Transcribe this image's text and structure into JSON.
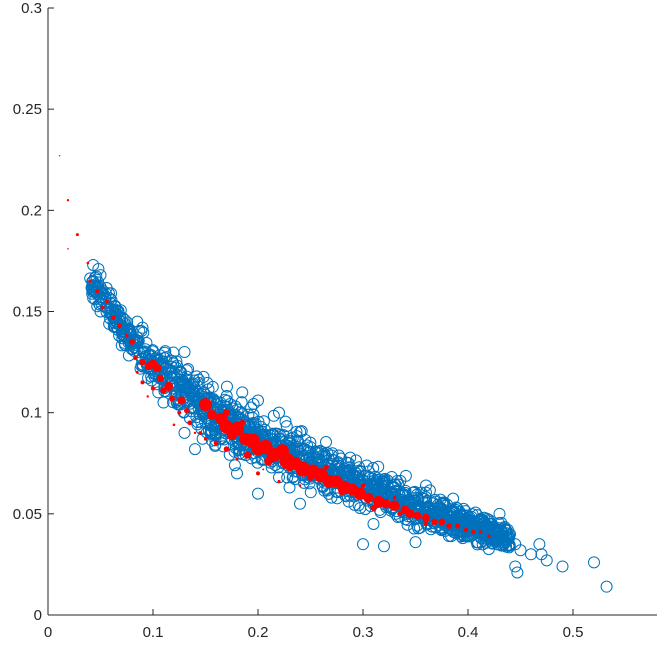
{
  "chart_data": {
    "type": "scatter",
    "title": "",
    "xlabel": "",
    "ylabel": "",
    "xlim": [
      0,
      0.58
    ],
    "ylim": [
      0,
      0.3
    ],
    "grid": false,
    "xticks": [
      0,
      0.1,
      0.2,
      0.3,
      0.4,
      0.5
    ],
    "xtick_labels": [
      "0",
      "0.1",
      "0.2",
      "0.3",
      "0.4",
      "0.5"
    ],
    "yticks": [
      0,
      0.05,
      0.1,
      0.15,
      0.2,
      0.25,
      0.3
    ],
    "ytick_labels": [
      "0",
      "0.05",
      "0.1",
      "0.15",
      "0.2",
      "0.25",
      "0.3"
    ],
    "colors": {
      "circles": "#0072BD",
      "dots": "#FF0000",
      "axes": "#262626"
    },
    "series": [
      {
        "marker": "open-circle",
        "band": {
          "x": [
            0.04,
            0.08,
            0.12,
            0.16,
            0.2,
            0.24,
            0.28,
            0.32,
            0.36,
            0.4,
            0.44
          ],
          "y_center": [
            0.165,
            0.135,
            0.114,
            0.098,
            0.087,
            0.077,
            0.068,
            0.06,
            0.052,
            0.045,
            0.037
          ],
          "y_spread": [
            0.005,
            0.008,
            0.011,
            0.011,
            0.011,
            0.011,
            0.01,
            0.009,
            0.008,
            0.007,
            0.005
          ],
          "count": 1500
        },
        "points": [
          [
            0.043,
            0.173
          ],
          [
            0.048,
            0.171
          ],
          [
            0.05,
            0.168
          ],
          [
            0.045,
            0.156
          ],
          [
            0.05,
            0.15
          ],
          [
            0.058,
            0.159
          ],
          [
            0.06,
            0.159
          ],
          [
            0.065,
            0.145
          ],
          [
            0.07,
            0.14
          ],
          [
            0.085,
            0.145
          ],
          [
            0.09,
            0.142
          ],
          [
            0.1,
            0.124
          ],
          [
            0.118,
            0.12
          ],
          [
            0.13,
            0.13
          ],
          [
            0.2,
            0.06
          ],
          [
            0.22,
            0.068
          ],
          [
            0.23,
            0.063
          ],
          [
            0.24,
            0.055
          ],
          [
            0.3,
            0.035
          ],
          [
            0.32,
            0.034
          ],
          [
            0.35,
            0.036
          ],
          [
            0.39,
            0.049
          ],
          [
            0.41,
            0.045
          ],
          [
            0.42,
            0.047
          ],
          [
            0.44,
            0.04
          ],
          [
            0.445,
            0.035
          ],
          [
            0.45,
            0.032
          ],
          [
            0.447,
            0.021
          ],
          [
            0.445,
            0.024
          ],
          [
            0.46,
            0.03
          ],
          [
            0.468,
            0.035
          ],
          [
            0.47,
            0.03
          ],
          [
            0.475,
            0.027
          ],
          [
            0.49,
            0.024
          ],
          [
            0.52,
            0.026
          ],
          [
            0.532,
            0.014
          ],
          [
            0.36,
            0.064
          ],
          [
            0.22,
            0.1
          ],
          [
            0.2,
            0.106
          ],
          [
            0.185,
            0.11
          ],
          [
            0.105,
            0.11
          ],
          [
            0.11,
            0.105
          ],
          [
            0.13,
            0.09
          ],
          [
            0.14,
            0.082
          ],
          [
            0.18,
            0.07
          ],
          [
            0.178,
            0.074
          ],
          [
            0.27,
            0.058
          ],
          [
            0.31,
            0.045
          ],
          [
            0.395,
            0.038
          ],
          [
            0.43,
            0.05
          ]
        ]
      },
      {
        "marker": "filled-dot",
        "points": [
          [
            0.011,
            0.227,
            0.7
          ],
          [
            0.019,
            0.205,
            1.2
          ],
          [
            0.019,
            0.181,
            0.8
          ],
          [
            0.028,
            0.188,
            1.5
          ],
          [
            0.038,
            0.174,
            1.3
          ],
          [
            0.04,
            0.165,
            1.6
          ],
          [
            0.047,
            0.16,
            1.8
          ],
          [
            0.052,
            0.152,
            2.1
          ],
          [
            0.056,
            0.155,
            2.0
          ],
          [
            0.062,
            0.147,
            2.4
          ],
          [
            0.068,
            0.143,
            2.6
          ],
          [
            0.075,
            0.138,
            1.8
          ],
          [
            0.08,
            0.135,
            3.0
          ],
          [
            0.083,
            0.127,
            2.0
          ],
          [
            0.09,
            0.125,
            3.2
          ],
          [
            0.096,
            0.123,
            4.0
          ],
          [
            0.1,
            0.124,
            4.5
          ],
          [
            0.104,
            0.122,
            4.2
          ],
          [
            0.107,
            0.117,
            3.6
          ],
          [
            0.11,
            0.111,
            3.2
          ],
          [
            0.115,
            0.113,
            4.5
          ],
          [
            0.118,
            0.107,
            3.0
          ],
          [
            0.127,
            0.106,
            4.0
          ],
          [
            0.132,
            0.101,
            2.6
          ],
          [
            0.135,
            0.095,
            2.4
          ],
          [
            0.14,
            0.09,
            1.2
          ],
          [
            0.15,
            0.104,
            6.5
          ],
          [
            0.156,
            0.099,
            5.0
          ],
          [
            0.165,
            0.097,
            6.0
          ],
          [
            0.17,
            0.093,
            6.8
          ],
          [
            0.175,
            0.089,
            5.2
          ],
          [
            0.18,
            0.092,
            7.0
          ],
          [
            0.188,
            0.087,
            6.2
          ],
          [
            0.195,
            0.086,
            7.5
          ],
          [
            0.2,
            0.082,
            6.4
          ],
          [
            0.207,
            0.083,
            7.2
          ],
          [
            0.215,
            0.079,
            7.0
          ],
          [
            0.223,
            0.081,
            6.8
          ],
          [
            0.228,
            0.076,
            7.8
          ],
          [
            0.235,
            0.075,
            6.5
          ],
          [
            0.243,
            0.072,
            7.4
          ],
          [
            0.252,
            0.071,
            6.9
          ],
          [
            0.26,
            0.069,
            7.2
          ],
          [
            0.268,
            0.066,
            6.6
          ],
          [
            0.275,
            0.066,
            6.0
          ],
          [
            0.282,
            0.063,
            6.8
          ],
          [
            0.29,
            0.062,
            5.8
          ],
          [
            0.297,
            0.06,
            6.2
          ],
          [
            0.305,
            0.058,
            5.2
          ],
          [
            0.315,
            0.056,
            5.8
          ],
          [
            0.322,
            0.055,
            4.8
          ],
          [
            0.33,
            0.054,
            5.2
          ],
          [
            0.34,
            0.052,
            4.4
          ],
          [
            0.345,
            0.05,
            4.6
          ],
          [
            0.352,
            0.049,
            3.8
          ],
          [
            0.36,
            0.048,
            4.0
          ],
          [
            0.368,
            0.046,
            3.2
          ],
          [
            0.375,
            0.046,
            3.4
          ],
          [
            0.382,
            0.044,
            2.8
          ],
          [
            0.39,
            0.044,
            2.6
          ],
          [
            0.398,
            0.042,
            2.2
          ],
          [
            0.405,
            0.041,
            2.2
          ],
          [
            0.412,
            0.041,
            1.8
          ],
          [
            0.42,
            0.039,
            1.6
          ],
          [
            0.2,
            0.07,
            2.0
          ],
          [
            0.22,
            0.066,
            1.6
          ],
          [
            0.24,
            0.064,
            1.3
          ],
          [
            0.23,
            0.073,
            4.0
          ],
          [
            0.21,
            0.076,
            4.2
          ],
          [
            0.19,
            0.079,
            3.6
          ],
          [
            0.17,
            0.082,
            2.8
          ],
          [
            0.16,
            0.085,
            2.4
          ],
          [
            0.15,
            0.087,
            1.6
          ],
          [
            0.145,
            0.09,
            1.8
          ],
          [
            0.125,
            0.1,
            2.0
          ],
          [
            0.12,
            0.094,
            1.3
          ],
          [
            0.1,
            0.112,
            2.2
          ],
          [
            0.095,
            0.108,
            1.2
          ],
          [
            0.09,
            0.115,
            2.0
          ],
          [
            0.085,
            0.12,
            1.4
          ],
          [
            0.18,
            0.077,
            1.4
          ],
          [
            0.205,
            0.072,
            1.0
          ],
          [
            0.25,
            0.068,
            3.4
          ],
          [
            0.28,
            0.061,
            3.6
          ],
          [
            0.31,
            0.053,
            3.2
          ],
          [
            0.335,
            0.05,
            2.6
          ],
          [
            0.36,
            0.045,
            2.2
          ],
          [
            0.265,
            0.073,
            2.6
          ],
          [
            0.3,
            0.064,
            2.4
          ],
          [
            0.33,
            0.058,
            1.8
          ],
          [
            0.17,
            0.1,
            3.4
          ],
          [
            0.185,
            0.095,
            3.0
          ]
        ]
      }
    ]
  }
}
